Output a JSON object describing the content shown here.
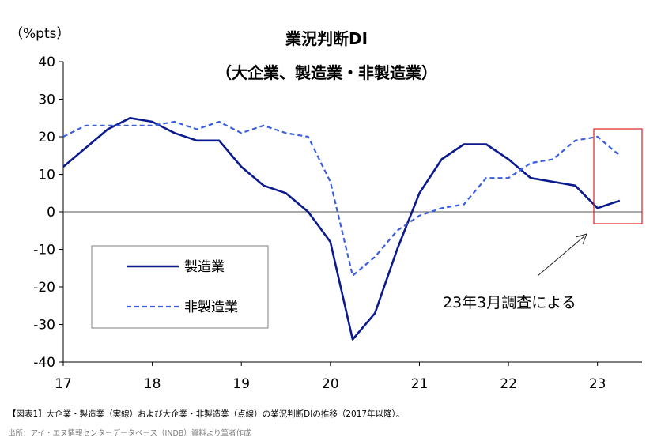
{
  "chart_data": {
    "type": "line",
    "title": "業況判断DI",
    "subtitle": "（大企業、製造業・非製造業）",
    "ylabel": "（%pts）",
    "xlabel": "",
    "ylim": [
      -40,
      40
    ],
    "yticks": [
      40,
      30,
      20,
      10,
      0,
      -10,
      -20,
      -30,
      -40
    ],
    "xlim": [
      2017,
      2023.5
    ],
    "xticks": [
      "17",
      "18",
      "19",
      "20",
      "21",
      "22",
      "23"
    ],
    "grid": false,
    "legend": "lower-left",
    "series": [
      {
        "name": "製造業",
        "style": "solid",
        "color": "#0b1a8c",
        "x": [
          2017,
          2017.25,
          2017.5,
          2017.75,
          2018,
          2018.25,
          2018.5,
          2018.75,
          2019,
          2019.25,
          2019.5,
          2019.75,
          2020,
          2020.25,
          2020.5,
          2020.75,
          2021,
          2021.25,
          2021.5,
          2021.75,
          2022,
          2022.25,
          2022.5,
          2022.75,
          2023,
          2023.25
        ],
        "values": [
          12,
          17,
          22,
          25,
          24,
          21,
          19,
          19,
          12,
          7,
          5,
          0,
          -8,
          -34,
          -27,
          -10,
          5,
          14,
          18,
          18,
          14,
          9,
          8,
          7,
          1,
          3
        ]
      },
      {
        "name": "非製造業",
        "style": "dashed",
        "color": "#3b5fe0",
        "x": [
          2017,
          2017.25,
          2017.5,
          2017.75,
          2018,
          2018.25,
          2018.5,
          2018.75,
          2019,
          2019.25,
          2019.5,
          2019.75,
          2020,
          2020.25,
          2020.5,
          2020.75,
          2021,
          2021.25,
          2021.5,
          2021.75,
          2022,
          2022.25,
          2022.5,
          2022.75,
          2023,
          2023.25
        ],
        "values": [
          20,
          23,
          23,
          23,
          23,
          24,
          22,
          24,
          21,
          23,
          21,
          20,
          8,
          -17,
          -12,
          -5,
          -1,
          1,
          2,
          9,
          9,
          13,
          14,
          19,
          20,
          15
        ]
      }
    ],
    "annotations": [
      {
        "text": "23年3月調査による",
        "highlight": "red-box"
      }
    ],
    "highlight_color": "#e02020"
  },
  "caption": "【図表1】大企業・製造業（実線）および大企業・非製造業（点線）の業況判断DIの推移（2017年以降）。",
  "source": "出所：アイ・エヌ情報センターデータベース（INDB）資料より筆者作成"
}
